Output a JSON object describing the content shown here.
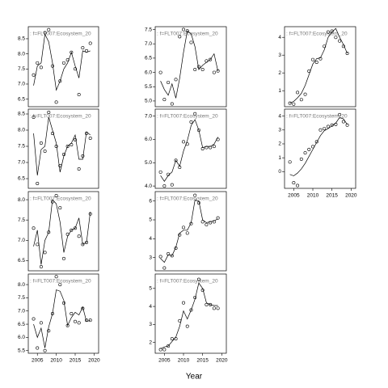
{
  "chart_data": {
    "type": "scatter",
    "xlabel": "Year",
    "xlim": [
      2002.6,
      2021.2
    ],
    "xticks": [
      2005,
      2010,
      2015,
      2020
    ],
    "panels": [
      {
        "strip": ": f=FLT007:Ecosystem_20",
        "ylim": [
          6.25,
          8.9
        ],
        "yticks": [
          6.5,
          {
            "value": 7,
            "label": "7.0"
          },
          7.5,
          {
            "value": 8,
            "label": "8.0"
          },
          8.5
        ],
        "x": [
          2004,
          2005,
          2006,
          2007,
          2008,
          2009,
          2010,
          2011,
          2012,
          2013,
          2014,
          2015,
          2016,
          2017,
          2018,
          2019
        ],
        "values": [
          7.3,
          7.7,
          7.55,
          8.7,
          8.8,
          7.6,
          6.4,
          7.1,
          7.7,
          7.8,
          8.05,
          7.5,
          6.65,
          8.2,
          8.1,
          8.35
        ],
        "fit": [
          6.95,
          7.6,
          7.7,
          8.65,
          8.4,
          7.7,
          6.8,
          7.1,
          7.5,
          7.7,
          8.05,
          7.6,
          7.2,
          8.1,
          8.05,
          8.1
        ]
      },
      {
        "strip": ": f=FLT007:Ecosystem_20",
        "ylim": [
          6.2,
          8.65
        ],
        "yticks": [
          6.5,
          {
            "value": 7,
            "label": "7.0"
          },
          7.5,
          {
            "value": 8,
            "label": "8.0"
          },
          8.5
        ],
        "x": [
          2004,
          2005,
          2006,
          2007,
          2008,
          2009,
          2010,
          2011,
          2012,
          2013,
          2014,
          2015,
          2016,
          2017,
          2018,
          2019
        ],
        "values": [
          8.4,
          6.35,
          7.6,
          7.35,
          8.55,
          7.9,
          7.5,
          6.9,
          7.25,
          7.5,
          7.55,
          7.7,
          6.8,
          7.2,
          7.9,
          7.75
        ],
        "fit": [
          7.9,
          6.6,
          7.4,
          7.5,
          8.4,
          8.0,
          7.6,
          6.7,
          7.2,
          7.5,
          7.6,
          7.85,
          7.1,
          7.1,
          7.95,
          7.85
        ]
      },
      {
        "strip": ": f=FLT007:Ecosystem_20",
        "ylim": [
          6.25,
          8.2
        ],
        "yticks": [
          6.5,
          {
            "value": 7,
            "label": "7.0"
          },
          7.5,
          {
            "value": 8,
            "label": "8.0"
          }
        ],
        "x": [
          2004,
          2005,
          2006,
          2007,
          2008,
          2009,
          2010,
          2011,
          2012,
          2013,
          2014,
          2015,
          2016,
          2017,
          2018,
          2019
        ],
        "values": [
          7.3,
          6.9,
          6.35,
          6.7,
          7.2,
          7.95,
          8.1,
          7.8,
          6.55,
          7.15,
          7.25,
          7.3,
          7.1,
          6.9,
          6.95,
          7.65
        ],
        "fit": [
          6.85,
          7.25,
          6.4,
          7.0,
          7.2,
          8.0,
          7.9,
          7.45,
          6.7,
          7.1,
          7.25,
          7.3,
          7.55,
          6.9,
          6.95,
          7.7
        ]
      },
      {
        "strip": ": f=FLT007:Ecosystem_20",
        "ylim": [
          5.4,
          8.4
        ],
        "yticks": [
          5.5,
          {
            "value": 6,
            "label": "6.0"
          },
          6.5,
          {
            "value": 7,
            "label": "7.0"
          },
          7.5,
          {
            "value": 8,
            "label": "8.0"
          }
        ],
        "x": [
          2004,
          2005,
          2006,
          2007,
          2008,
          2009,
          2010,
          2011,
          2012,
          2013,
          2014,
          2015,
          2016,
          2017,
          2018,
          2019
        ],
        "values": [
          6.7,
          5.6,
          6.55,
          5.5,
          6.25,
          6.9,
          8.3,
          8.0,
          7.3,
          6.45,
          6.9,
          6.6,
          6.55,
          7.1,
          6.65,
          6.65
        ],
        "fit": [
          6.5,
          6.0,
          6.35,
          5.6,
          6.4,
          6.9,
          7.8,
          7.75,
          7.4,
          6.45,
          6.75,
          6.95,
          6.85,
          7.15,
          6.6,
          6.65
        ]
      },
      {
        "strip": ": f=FLT007:Ecosystem_20",
        "ylim": [
          4.8,
          7.6
        ],
        "yticks": [
          {
            "value": 5,
            "label": "5.0"
          },
          5.5,
          {
            "value": 6,
            "label": "6.0"
          },
          6.5,
          {
            "value": 7,
            "label": "7.0"
          },
          7.5
        ],
        "x": [
          2004,
          2005,
          2006,
          2007,
          2008,
          2009,
          2010,
          2011,
          2012,
          2013,
          2014,
          2015,
          2016,
          2017,
          2018,
          2019
        ],
        "values": [
          6.0,
          5.05,
          5.65,
          4.9,
          5.75,
          7.25,
          7.5,
          7.45,
          7.05,
          6.1,
          6.2,
          6.1,
          6.4,
          6.45,
          6.0,
          6.05
        ],
        "fit": [
          5.7,
          5.4,
          5.2,
          5.6,
          5.1,
          5.8,
          6.7,
          7.45,
          7.35,
          6.9,
          6.1,
          6.25,
          6.35,
          6.45,
          6.65,
          6.05
        ]
      },
      {
        "strip": ": f=FLT007:Ecosystem_20",
        "ylim": [
          3.9,
          7.3
        ],
        "yticks": [
          {
            "value": 4,
            "label": "4.0"
          },
          {
            "value": 5,
            "label": "5.0"
          },
          {
            "value": 6,
            "label": "6.0"
          },
          {
            "value": 7,
            "label": "7.0"
          }
        ],
        "x": [
          2004,
          2005,
          2006,
          2007,
          2008,
          2009,
          2010,
          2011,
          2012,
          2013,
          2014,
          2015,
          2016,
          2017,
          2018,
          2019
        ],
        "values": [
          4.6,
          4.0,
          4.5,
          4.05,
          5.1,
          4.8,
          5.9,
          5.8,
          6.75,
          7.1,
          6.4,
          5.6,
          5.65,
          5.65,
          5.7,
          6.0
        ],
        "fit": [
          4.45,
          4.2,
          4.45,
          4.6,
          5.1,
          4.85,
          5.5,
          5.95,
          6.6,
          6.85,
          6.4,
          5.65,
          5.7,
          5.7,
          5.8,
          6.1
        ]
      },
      {
        "strip": ": f=FLT007:Ecosystem_20",
        "ylim": [
          2.3,
          6.5
        ],
        "yticks": [
          2,
          3,
          4,
          5,
          6
        ],
        "x": [
          2004,
          2005,
          2006,
          2007,
          2008,
          2009,
          2010,
          2011,
          2012,
          2013,
          2014,
          2015,
          2016,
          2017,
          2018,
          2019
        ],
        "values": [
          3.05,
          2.45,
          3.2,
          3.1,
          3.5,
          4.2,
          4.6,
          4.3,
          4.8,
          6.3,
          5.9,
          4.9,
          4.75,
          4.85,
          4.9,
          5.1
        ],
        "fit": [
          2.95,
          2.75,
          3.15,
          3.1,
          3.55,
          4.3,
          4.45,
          4.45,
          4.85,
          6.05,
          6.0,
          5.0,
          4.85,
          4.9,
          4.95,
          5.05
        ]
      },
      {
        "strip": ": f=FLT007:Ecosystem_20",
        "ylim": [
          1.4,
          5.8
        ],
        "yticks": [
          2,
          3,
          4,
          5
        ],
        "x": [
          2004,
          2005,
          2006,
          2007,
          2008,
          2009,
          2010,
          2011,
          2012,
          2013,
          2014,
          2015,
          2016,
          2017,
          2018,
          2019
        ],
        "values": [
          1.6,
          1.6,
          1.8,
          2.2,
          2.2,
          3.2,
          4.2,
          2.9,
          3.8,
          4.5,
          5.5,
          4.9,
          4.1,
          4.1,
          3.9,
          3.9
        ],
        "fit": [
          1.65,
          1.75,
          1.8,
          2.05,
          2.3,
          2.9,
          3.75,
          3.3,
          3.8,
          4.4,
          5.3,
          5.0,
          4.2,
          4.1,
          4.05,
          4.05
        ]
      },
      {
        "strip": ": f=FLT007:Ecosystem_20",
        "ylim": [
          0.1,
          4.6
        ],
        "yticks": [
          0,
          1,
          2,
          3,
          4
        ],
        "x": [
          2004,
          2005,
          2006,
          2007,
          2008,
          2009,
          2010,
          2011,
          2012,
          2013,
          2014,
          2015,
          2016,
          2017,
          2018,
          2019
        ],
        "values": [
          0.3,
          0.25,
          0.9,
          0.5,
          0.8,
          2.1,
          2.75,
          2.6,
          2.8,
          3.5,
          4.3,
          4.35,
          4.0,
          3.8,
          3.5,
          3.1
        ],
        "fit": [
          0.3,
          0.4,
          0.6,
          0.85,
          1.3,
          1.9,
          2.5,
          2.8,
          2.85,
          3.3,
          4.0,
          4.3,
          4.5,
          4.0,
          3.6,
          3.1
        ]
      },
      {
        "strip": ": f=FLT007:Ecosystem_20",
        "ylim": [
          -1.2,
          4.5
        ],
        "yticks": [
          0,
          1,
          2,
          3,
          4
        ],
        "x": [
          2004,
          2005,
          2006,
          2007,
          2008,
          2009,
          2010,
          2011,
          2012,
          2013,
          2014,
          2015,
          2016,
          2017,
          2018,
          2019
        ],
        "values": [
          0.7,
          -0.8,
          -1.0,
          0.9,
          1.35,
          1.6,
          1.8,
          2.15,
          3.0,
          3.1,
          3.25,
          3.35,
          3.4,
          4.1,
          3.6,
          3.35
        ],
        "fit": [
          -0.2,
          -0.3,
          -0.1,
          0.2,
          0.6,
          1.1,
          1.6,
          2.1,
          2.6,
          2.95,
          3.1,
          3.3,
          3.5,
          3.9,
          3.8,
          3.4
        ]
      }
    ]
  }
}
